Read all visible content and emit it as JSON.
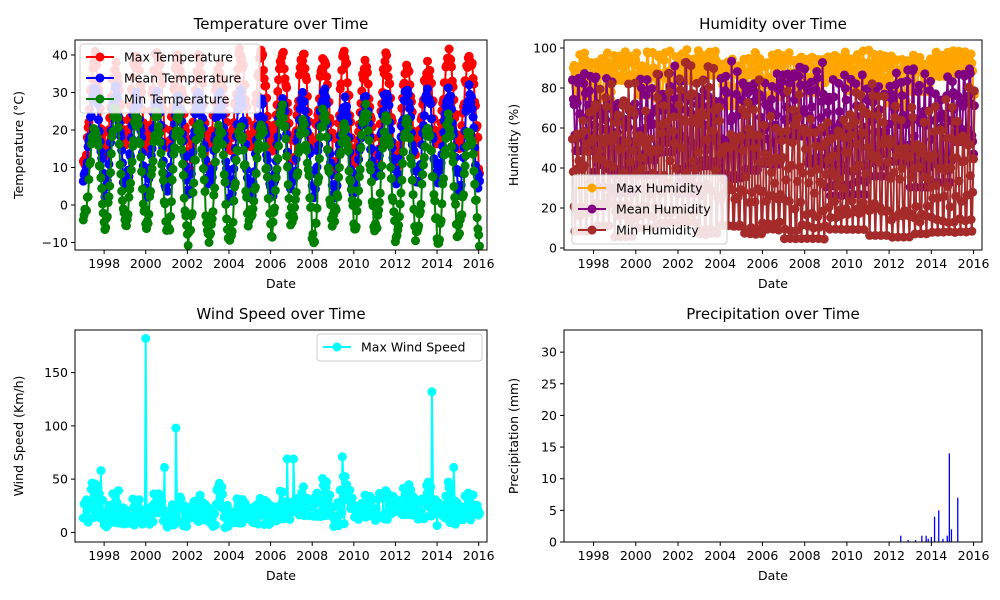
{
  "chart_data": [
    {
      "type": "line",
      "title": "Temperature over Time",
      "xlabel": "Date",
      "ylabel": "Temperature (°C)",
      "xlim": [
        1996.6,
        2016.4
      ],
      "ylim": [
        -12,
        44
      ],
      "xticks": [
        1998,
        2000,
        2002,
        2004,
        2006,
        2008,
        2010,
        2012,
        2014,
        2016
      ],
      "xtick_labels": [
        "1998",
        "2000",
        "2002",
        "2004",
        "2006",
        "2008",
        "2010",
        "2012",
        "2014",
        "2016"
      ],
      "yticks": [
        -10,
        0,
        10,
        20,
        30,
        40
      ],
      "ytick_labels": [
        "−10",
        "0",
        "10",
        "20",
        "30",
        "40"
      ],
      "legend": "top-left",
      "grid": false,
      "series": [
        {
          "name": "Max Temperature",
          "color": "#ff0000",
          "low": [
            8,
            12,
            18
          ],
          "high": [
            36,
            39,
            41
          ]
        },
        {
          "name": "Mean Temperature",
          "color": "#0000ff",
          "low": [
            1,
            4,
            8
          ],
          "high": [
            27,
            29,
            31
          ]
        },
        {
          "name": "Min Temperature",
          "color": "#008000",
          "low": [
            -10,
            -5,
            -2
          ],
          "high": [
            20,
            23,
            26
          ]
        }
      ],
      "x_range": [
        1997.0,
        2016.05
      ]
    },
    {
      "type": "line",
      "title": "Humidity over Time",
      "xlabel": "Date",
      "ylabel": "Humidity (%)",
      "xlim": [
        1996.6,
        2016.4
      ],
      "ylim": [
        -1,
        104
      ],
      "xticks": [
        1998,
        2000,
        2002,
        2004,
        2006,
        2008,
        2010,
        2012,
        2014,
        2016
      ],
      "xtick_labels": [
        "1998",
        "2000",
        "2002",
        "2004",
        "2006",
        "2008",
        "2010",
        "2012",
        "2014",
        "2016"
      ],
      "yticks": [
        0,
        20,
        40,
        60,
        80,
        100
      ],
      "ytick_labels": [
        "0",
        "20",
        "40",
        "60",
        "80",
        "100"
      ],
      "legend": "center-left",
      "grid": false,
      "series": [
        {
          "name": "Max Humidity",
          "color": "#ffa500",
          "low": [
            70,
            80,
            88
          ],
          "high": [
            100,
            100,
            100
          ]
        },
        {
          "name": "Mean Humidity",
          "color": "#800080",
          "low": [
            25,
            40,
            55
          ],
          "high": [
            88,
            95,
            100
          ]
        },
        {
          "name": "Min Humidity",
          "color": "#a52a2a",
          "low": [
            3,
            7,
            12
          ],
          "high": [
            65,
            80,
            98
          ]
        }
      ],
      "x_range": [
        1997.0,
        2016.05
      ]
    },
    {
      "type": "line",
      "title": "Wind Speed over Time",
      "xlabel": "Date",
      "ylabel": "Wind Speed (Km/h)",
      "xlim": [
        1996.6,
        2016.4
      ],
      "ylim": [
        -9,
        190
      ],
      "xticks": [
        1998,
        2000,
        2002,
        2004,
        2006,
        2008,
        2010,
        2012,
        2014,
        2016
      ],
      "xtick_labels": [
        "1998",
        "2000",
        "2002",
        "2004",
        "2006",
        "2008",
        "2010",
        "2012",
        "2014",
        "2016"
      ],
      "yticks": [
        0,
        50,
        100,
        150
      ],
      "ytick_labels": [
        "0",
        "50",
        "100",
        "150"
      ],
      "legend": "top-right",
      "grid": false,
      "series": [
        {
          "name": "Max Wind Speed",
          "color": "#00ffff",
          "low": [
            3,
            8,
            14
          ],
          "high": [
            35,
            45,
            55
          ]
        }
      ],
      "spikes": [
        {
          "x": 2000.0,
          "y": 182
        },
        {
          "x": 2001.45,
          "y": 98
        },
        {
          "x": 2013.75,
          "y": 132
        },
        {
          "x": 2009.45,
          "y": 71
        },
        {
          "x": 2006.8,
          "y": 69
        },
        {
          "x": 2007.1,
          "y": 69
        },
        {
          "x": 2014.8,
          "y": 61
        },
        {
          "x": 1997.85,
          "y": 58
        },
        {
          "x": 2000.9,
          "y": 61
        }
      ],
      "x_range": [
        1997.0,
        2016.05
      ]
    },
    {
      "type": "bar",
      "title": "Precipitation over Time",
      "xlabel": "Date",
      "ylabel": "Precipitation (mm)",
      "xlim": [
        1996.6,
        2016.4
      ],
      "ylim": [
        0,
        33.5
      ],
      "xticks": [
        1998,
        2000,
        2002,
        2004,
        2006,
        2008,
        2010,
        2012,
        2014,
        2016
      ],
      "xtick_labels": [
        "1998",
        "2000",
        "2002",
        "2004",
        "2006",
        "2008",
        "2010",
        "2012",
        "2014",
        "2016"
      ],
      "yticks": [
        0,
        5,
        10,
        15,
        20,
        25,
        30
      ],
      "ytick_labels": [
        "0",
        "5",
        "10",
        "15",
        "20",
        "25",
        "30"
      ],
      "grid": false,
      "bar_color": "#0000ff",
      "x": [
        2012.55,
        2012.9,
        2013.25,
        2013.55,
        2013.75,
        2013.85,
        2014.0,
        2014.15,
        2014.35,
        2014.55,
        2014.75,
        2014.85,
        2014.95,
        2015.25
      ],
      "values": [
        1.0,
        0.3,
        0.3,
        1.0,
        1.0,
        0.5,
        0.8,
        4.0,
        5.0,
        0.5,
        1.0,
        14.0,
        2.0,
        7.0
      ]
    }
  ]
}
